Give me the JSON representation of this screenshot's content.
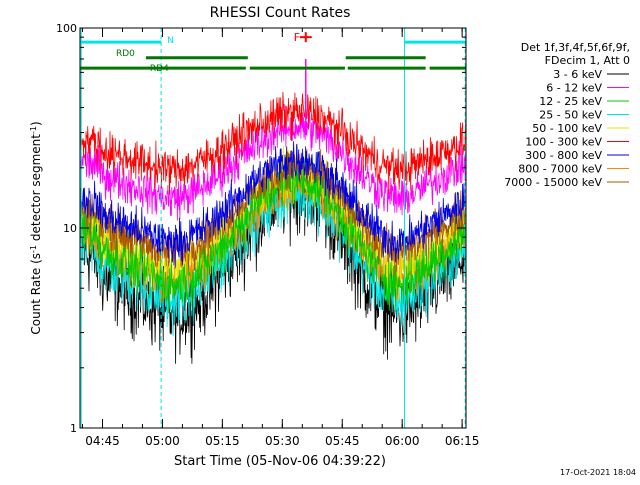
{
  "chart_data": {
    "type": "line",
    "title": "RHESSI Count Rates",
    "xlabel": "Start Time (05-Nov-06 04:39:22)",
    "ylabel_main": "Count Rate (s",
    "ylabel_sup1": "-1",
    "ylabel_mid": " detector segment",
    "ylabel_sup2": "-1",
    "ylabel_end": ")",
    "y_scale": "log",
    "ylim": [
      1,
      100
    ],
    "xlim_minutes": [
      0,
      96.6
    ],
    "x_ticks": [
      {
        "label": "04:45",
        "min": 5.63
      },
      {
        "label": "05:00",
        "min": 20.63
      },
      {
        "label": "05:15",
        "min": 35.63
      },
      {
        "label": "05:30",
        "min": 50.63
      },
      {
        "label": "05:45",
        "min": 65.63
      },
      {
        "label": "06:00",
        "min": 80.63
      },
      {
        "label": "06:15",
        "min": 95.63
      }
    ],
    "y_ticks": [
      {
        "label": "1",
        "value": 1
      },
      {
        "label": "10",
        "value": 10
      },
      {
        "label": "100",
        "value": 100
      }
    ],
    "legend_header": [
      "Det 1f,3f,4f,5f,6f,9f,",
      "FDecim 1, Att 0"
    ],
    "legend_position": "right",
    "series": [
      {
        "name": "3 - 6 keV",
        "color": "#000000",
        "trough": 3.6,
        "peak": 15.0,
        "jitter": 0.1
      },
      {
        "name": "6 - 12 keV",
        "color": "#ff00ff",
        "trough": 14.0,
        "peak": 32.0,
        "jitter": 0.05
      },
      {
        "name": "12 - 25 keV",
        "color": "#00cc00",
        "trough": 5.2,
        "peak": 17.5,
        "jitter": 0.06
      },
      {
        "name": "25 - 50 keV",
        "color": "#00e5e5",
        "trough": 4.3,
        "peak": 15.0,
        "jitter": 0.07
      },
      {
        "name": "50 - 100 keV",
        "color": "#e5e500",
        "trough": 6.3,
        "peak": 18.5,
        "jitter": 0.06
      },
      {
        "name": "100 - 300 keV",
        "color": "#ff0000",
        "trough": 19.5,
        "peak": 38.0,
        "jitter": 0.05
      },
      {
        "name": "300 - 800 keV",
        "color": "#0000e5",
        "trough": 8.5,
        "peak": 22.0,
        "jitter": 0.05
      },
      {
        "name": "800 - 7000 keV",
        "color": "#ff8800",
        "trough": 5.5,
        "peak": 16.5,
        "jitter": 0.06
      },
      {
        "name": "7000 - 15000 keV",
        "color": "#aa5500",
        "trough": 7.5,
        "peak": 20.0,
        "jitter": 0.05
      }
    ],
    "flare_spike": {
      "minute": 56.5,
      "value": 92,
      "label": "F",
      "color": "#ff0000"
    },
    "night_bars": [
      {
        "label": "N",
        "start": 0,
        "end": 20.3,
        "value": 85,
        "color": "#00e5e5"
      },
      {
        "label": "",
        "start": 81.2,
        "end": 96.6,
        "value": 85,
        "color": "#00e5e5"
      }
    ],
    "saa_bars": [
      {
        "start": 0,
        "end": 96.6,
        "value": 63,
        "color": "#007700",
        "gaps": [
          [
            41.5,
            42.5
          ],
          [
            66.3,
            67.0
          ],
          [
            86.5,
            87.5
          ]
        ]
      },
      {
        "start": 16.5,
        "end": 42.0,
        "value": 71,
        "color": "#007700",
        "gaps": []
      },
      {
        "start": 66.5,
        "end": 86.5,
        "value": 71,
        "color": "#007700",
        "gaps": []
      }
    ],
    "rd_labels": [
      {
        "label": "RD0",
        "minute": 9.0,
        "value": 75
      },
      {
        "label": "RD4",
        "minute": 17.5,
        "value": 63
      }
    ],
    "vlines_solid": [
      0.3,
      81.2
    ],
    "vlines_dashed": [
      20.3,
      96.4
    ],
    "timestamp": "17-Oct-2021 18:04"
  }
}
